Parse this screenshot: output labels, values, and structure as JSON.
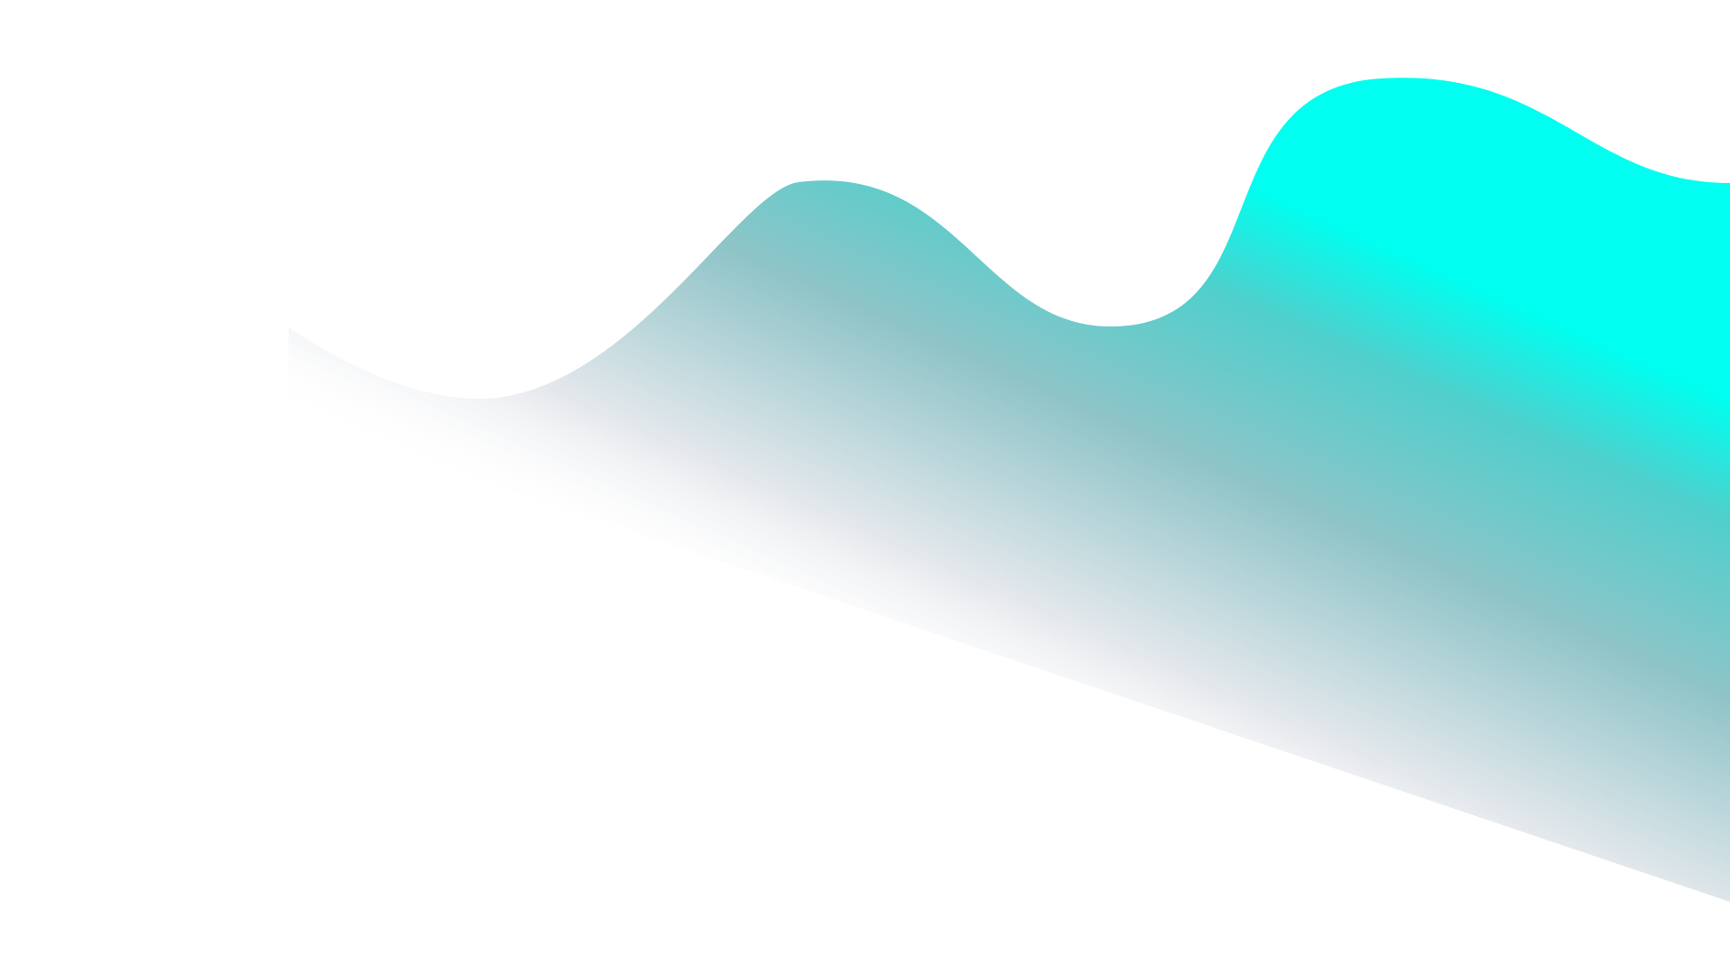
{
  "background_color": "#ffffff",
  "wave": {
    "gradient_colors": {
      "top": "#00fff0",
      "middle": "#4fcfcc",
      "lower": "#8fc4c8",
      "fade": "#e6e9ed",
      "end": "#ffffff"
    }
  }
}
